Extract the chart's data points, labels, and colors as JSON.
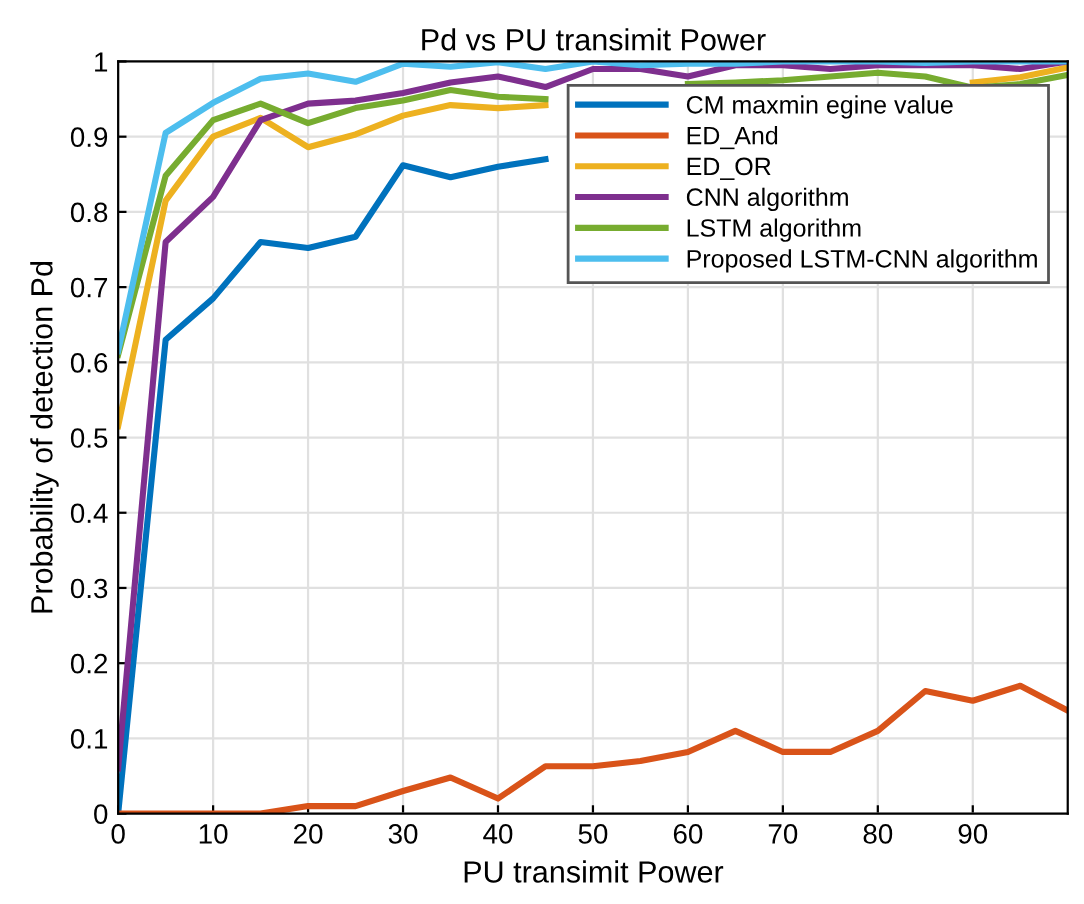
{
  "chart_data": {
    "type": "line",
    "title": "Pd vs PU transimit Power",
    "xlabel": "PU transimit Power",
    "ylabel": "Probability of detection Pd",
    "x": [
      0,
      5,
      10,
      15,
      20,
      25,
      30,
      35,
      40,
      45,
      50,
      55,
      60,
      65,
      70,
      75,
      80,
      85,
      90,
      95,
      100
    ],
    "xlim": [
      0,
      100
    ],
    "xticks": [
      0,
      10,
      20,
      30,
      40,
      50,
      60,
      70,
      80,
      90
    ],
    "ylim": [
      0,
      1
    ],
    "yticks": [
      0,
      0.1,
      0.2,
      0.3,
      0.4,
      0.5,
      0.6,
      0.7,
      0.8,
      0.9,
      1
    ],
    "grid": true,
    "legend": "top right",
    "marker": "none",
    "line_style": "solid",
    "series": [
      {
        "name": "CM maxmin egine value",
        "color": "#0072bd",
        "values": [
          0,
          0.63,
          0.685,
          0.76,
          0.752,
          0.767,
          0.862,
          0.846,
          0.86,
          0.87,
          null,
          null,
          null,
          null,
          null,
          null,
          null,
          null,
          null,
          null,
          null
        ]
      },
      {
        "name": "ED_And",
        "color": "#d95319",
        "values": [
          0,
          0,
          0,
          0,
          0.01,
          0.01,
          0.03,
          0.048,
          0.02,
          0.063,
          0.063,
          0.07,
          0.082,
          0.11,
          0.082,
          0.082,
          0.11,
          0.163,
          0.15,
          0.17,
          0.137
        ]
      },
      {
        "name": "ED_OR",
        "color": "#edb120",
        "values": [
          0.515,
          0.815,
          0.9,
          0.925,
          0.886,
          0.903,
          0.928,
          0.942,
          0.938,
          0.942,
          null,
          null,
          null,
          null,
          null,
          null,
          null,
          null,
          0.972,
          0.979,
          0.992
        ]
      },
      {
        "name": "CNN algorithm",
        "color": "#7e2f8e",
        "values": [
          0.06,
          0.76,
          0.82,
          0.922,
          0.944,
          0.948,
          0.958,
          0.972,
          0.98,
          0.966,
          0.99,
          0.99,
          0.98,
          0.995,
          0.995,
          0.99,
          0.995,
          0.995,
          0.995,
          0.99,
          1.0
        ]
      },
      {
        "name": "LSTM algorithm",
        "color": "#77ac30",
        "values": [
          0.61,
          0.848,
          0.922,
          0.944,
          0.918,
          0.938,
          0.948,
          0.962,
          0.953,
          0.95,
          null,
          null,
          0.97,
          0.972,
          0.975,
          0.98,
          0.985,
          0.98,
          0.965,
          0.97,
          0.982
        ]
      },
      {
        "name": "Proposed LSTM-CNN algorithm",
        "color": "#4dbeee",
        "values": [
          0.615,
          0.905,
          0.945,
          0.977,
          0.984,
          0.973,
          0.997,
          0.993,
          0.999,
          0.99,
          1.0,
          0.995,
          0.997,
          0.997,
          1.0,
          1.0,
          1.0,
          0.998,
          1.0,
          1.0,
          1.0
        ]
      }
    ]
  }
}
